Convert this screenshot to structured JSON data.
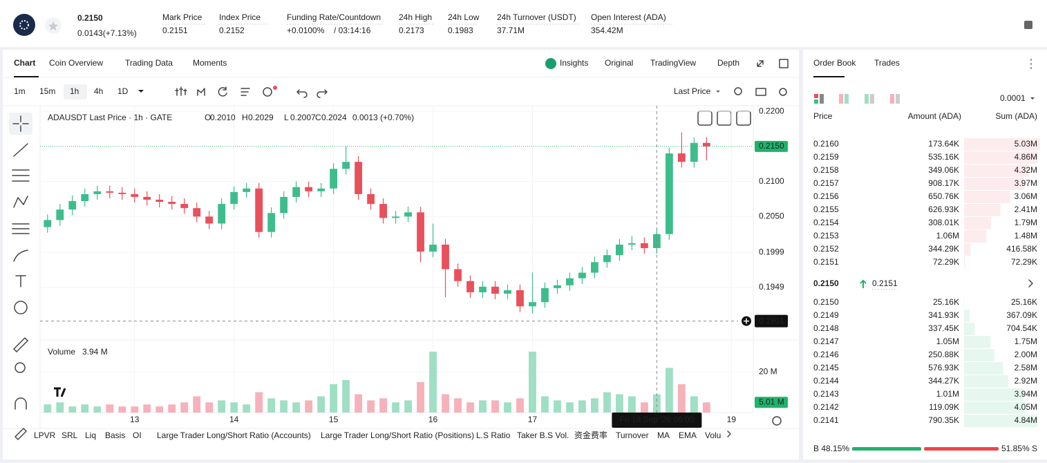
{
  "header": {
    "price": "0.2150",
    "change": "0.0143(+7.13%)",
    "stats": [
      {
        "label": "Mark Price",
        "value": "0.2151"
      },
      {
        "label": "Index Price",
        "value": "0.2152"
      },
      {
        "label": "Funding Rate/Countdown",
        "value": "+0.0100%",
        "countdown": "/ 03:14:16"
      },
      {
        "label": "24h High",
        "value": "0.2173"
      },
      {
        "label": "24h Low",
        "value": "0.1983"
      },
      {
        "label": "24h Turnover (USDT)",
        "value": "37.71M"
      },
      {
        "label": "Open Interest (ADA)",
        "value": "354.42M"
      }
    ]
  },
  "chart_tabs": [
    "Chart",
    "Coin Overview",
    "Trading Data",
    "Moments"
  ],
  "view_tabs": [
    "Insights",
    "Original",
    "TradingView",
    "Depth"
  ],
  "intervals": [
    "1m",
    "15m",
    "1h",
    "4h",
    "1D"
  ],
  "price_source": "Last Price",
  "chart_data": {
    "type": "candlestick",
    "legend": {
      "title": "ADAUSDT Last Price · 1h · GATE",
      "fields": [
        {
          "key": "O",
          "value": "0.2010"
        },
        {
          "key": "H",
          "value": "0.2029"
        },
        {
          "key": "L",
          "value": "0.2007"
        },
        {
          "key": "C",
          "value": "0.2024"
        }
      ],
      "change": "0.0013 (+0.70%)"
    },
    "x": [
      12.125,
      12.25,
      12.375,
      12.5,
      12.625,
      12.75,
      12.875,
      13,
      13.125,
      13.25,
      13.375,
      13.5,
      13.625,
      13.75,
      13.875,
      14,
      14.125,
      14.25,
      14.375,
      14.5,
      14.625,
      14.75,
      14.875,
      15,
      15.125,
      15.25,
      15.375,
      15.5,
      15.625,
      15.75,
      15.875,
      16,
      16.125,
      16.25,
      16.375,
      16.5,
      16.625,
      16.75,
      16.875,
      17,
      17.125,
      17.25,
      17.375,
      17.5,
      17.625,
      17.75,
      17.875,
      18,
      18.125,
      18.25,
      18.375,
      18.5,
      18.625,
      18.75
    ],
    "open": [
      0.2035,
      0.2045,
      0.206,
      0.2072,
      0.2082,
      0.2086,
      0.2084,
      0.2082,
      0.2078,
      0.2074,
      0.2071,
      0.2068,
      0.2062,
      0.205,
      0.204,
      0.2068,
      0.2085,
      0.209,
      0.2028,
      0.2055,
      0.2078,
      0.2092,
      0.2086,
      0.209,
      0.2118,
      0.2128,
      0.2082,
      0.2068,
      0.2048,
      0.205,
      0.2056,
      0.2,
      0.201,
      0.1975,
      0.1958,
      0.1942,
      0.195,
      0.194,
      0.1945,
      0.1922,
      0.1928,
      0.1948,
      0.1952,
      0.1962,
      0.197,
      0.1985,
      0.1995,
      0.201,
      0.2012,
      0.2005,
      0.2025,
      0.214,
      0.2128,
      0.2155
    ],
    "high": [
      0.2053,
      0.2068,
      0.208,
      0.209,
      0.2094,
      0.2094,
      0.2092,
      0.209,
      0.2086,
      0.2082,
      0.2079,
      0.2076,
      0.207,
      0.2058,
      0.2076,
      0.2093,
      0.2098,
      0.2098,
      0.2063,
      0.2086,
      0.21,
      0.21,
      0.2098,
      0.2126,
      0.215,
      0.2136,
      0.209,
      0.2076,
      0.2058,
      0.2064,
      0.2064,
      0.204,
      0.2018,
      0.1983,
      0.1966,
      0.1958,
      0.1958,
      0.1953,
      0.1953,
      0.197,
      0.1956,
      0.196,
      0.197,
      0.1978,
      0.1993,
      0.2003,
      0.2018,
      0.2022,
      0.202,
      0.2033,
      0.2148,
      0.217,
      0.2163,
      0.2163
    ],
    "low": [
      0.2027,
      0.2037,
      0.2052,
      0.2064,
      0.2074,
      0.2076,
      0.2074,
      0.207,
      0.2066,
      0.2063,
      0.206,
      0.2054,
      0.2042,
      0.2032,
      0.2032,
      0.206,
      0.2077,
      0.202,
      0.202,
      0.2047,
      0.207,
      0.2078,
      0.2078,
      0.2082,
      0.211,
      0.2074,
      0.206,
      0.204,
      0.204,
      0.2042,
      0.1985,
      0.1992,
      0.1935,
      0.195,
      0.1934,
      0.1934,
      0.1932,
      0.1932,
      0.1914,
      0.1912,
      0.192,
      0.194,
      0.1944,
      0.1954,
      0.1962,
      0.1977,
      0.1987,
      0.2002,
      0.1997,
      0.1997,
      0.2017,
      0.212,
      0.212,
      0.213
    ],
    "close": [
      0.2045,
      0.206,
      0.2072,
      0.2082,
      0.2086,
      0.2084,
      0.2082,
      0.2078,
      0.2074,
      0.2071,
      0.2068,
      0.2062,
      0.205,
      0.204,
      0.2068,
      0.2085,
      0.209,
      0.2028,
      0.2055,
      0.2078,
      0.2092,
      0.2086,
      0.209,
      0.2118,
      0.2128,
      0.2082,
      0.2068,
      0.2048,
      0.205,
      0.2056,
      0.2,
      0.201,
      0.1975,
      0.1958,
      0.1942,
      0.195,
      0.194,
      0.1945,
      0.1922,
      0.1928,
      0.1948,
      0.1952,
      0.1962,
      0.197,
      0.1985,
      0.1995,
      0.201,
      0.2012,
      0.2005,
      0.2025,
      0.214,
      0.2128,
      0.2155,
      0.215
    ],
    "volume": [
      4,
      5,
      3,
      4,
      3,
      4,
      3,
      3,
      4,
      3,
      4,
      5,
      8,
      5,
      6,
      5,
      4,
      10,
      7,
      6,
      5,
      6,
      8,
      14,
      16,
      9,
      6,
      7,
      5,
      6,
      15,
      30,
      9,
      7,
      5,
      6,
      6,
      5,
      7,
      30,
      8,
      6,
      5,
      6,
      7,
      10,
      9,
      8,
      5,
      9,
      22,
      14,
      8,
      5.01
    ],
    "up_color": "#3dbd8c",
    "down_color": "#e8505b",
    "volume_up_color": "#9fdfc4",
    "volume_down_color": "#f6b1bb",
    "xlim": [
      12.05,
      19.22
    ],
    "xticks": [
      13,
      14,
      15,
      16,
      17,
      19
    ],
    "ylim": [
      0.1874,
      0.2208
    ],
    "yticks": [
      {
        "value": 0.22,
        "label": "0.2200"
      },
      {
        "value": 0.21,
        "label": "0.2100"
      },
      {
        "value": 0.205,
        "label": "0.2050"
      },
      0.1999,
      0.1949
    ],
    "vlim": [
      0,
      33
    ],
    "vticks": [
      {
        "value": 20,
        "label": "20 M"
      }
    ],
    "volume_legend": {
      "label": "Volume",
      "value": "3.94 M"
    },
    "volume_tag": {
      "value": 5.01,
      "label": "5.01 M"
    },
    "last_price": {
      "value": 0.215,
      "label": "0.2150"
    },
    "crosshair": {
      "x": 18.25,
      "x_label": "Fri 18 Sep '26   06:00",
      "y": 0.1901
    },
    "grid": true
  },
  "indicators": [
    "LPVR",
    "SRL",
    "Liq",
    "Basis",
    "OI",
    "Large Trader Long/Short Ratio (Accounts)",
    "Large Trader Long/Short Ratio (Positions)",
    "L.S Ratio",
    "Taker B.S Vol.",
    "资金费率",
    "Turnover",
    "MA",
    "EMA",
    "Volu"
  ],
  "order_book": {
    "tabs": [
      "Order Book",
      "Trades"
    ],
    "precision": "0.0001",
    "columns": [
      "Price",
      "Amount (ADA)",
      "Sum (ADA)"
    ],
    "asks": [
      {
        "price": "0.2160",
        "amount": "173.64K",
        "sum": {
          "value": 5030000,
          "label": "5.03M"
        }
      },
      {
        "price": "0.2159",
        "amount": "535.16K",
        "sum": {
          "value": 4860000,
          "label": "4.86M"
        }
      },
      {
        "price": "0.2158",
        "amount": "349.06K",
        "sum": {
          "value": 4320000,
          "label": "4.32M"
        }
      },
      {
        "price": "0.2157",
        "amount": "908.17K",
        "sum": {
          "value": 3970000,
          "label": "3.97M"
        }
      },
      {
        "price": "0.2156",
        "amount": "650.76K",
        "sum": {
          "value": 3060000,
          "label": "3.06M"
        }
      },
      {
        "price": "0.2155",
        "amount": "626.93K",
        "sum": {
          "value": 2410000,
          "label": "2.41M"
        }
      },
      {
        "price": "0.2154",
        "amount": "308.01K",
        "sum": {
          "value": 1790000,
          "label": "1.79M"
        }
      },
      {
        "price": "0.2153",
        "amount": "1.06M",
        "sum": {
          "value": 1480000,
          "label": "1.48M"
        }
      },
      {
        "price": "0.2152",
        "amount": "344.29K",
        "sum": {
          "value": 416580,
          "label": "416.58K"
        }
      },
      {
        "price": "0.2151",
        "amount": "72.29K",
        "sum": {
          "value": 72290,
          "label": "72.29K"
        }
      }
    ],
    "mid_price": "0.2150",
    "mark_price": "0.2151",
    "bids": [
      {
        "price": "0.2150",
        "amount": "25.16K",
        "sum": {
          "value": 25160,
          "label": "25.16K"
        }
      },
      {
        "price": "0.2149",
        "amount": "341.93K",
        "sum": {
          "value": 367090,
          "label": "367.09K"
        }
      },
      {
        "price": "0.2148",
        "amount": "337.45K",
        "sum": {
          "value": 704540,
          "label": "704.54K"
        }
      },
      {
        "price": "0.2147",
        "amount": "1.05M",
        "sum": {
          "value": 1750000,
          "label": "1.75M"
        }
      },
      {
        "price": "0.2146",
        "amount": "250.88K",
        "sum": {
          "value": 2000000,
          "label": "2.00M"
        }
      },
      {
        "price": "0.2145",
        "amount": "576.93K",
        "sum": {
          "value": 2580000,
          "label": "2.58M"
        }
      },
      {
        "price": "0.2144",
        "amount": "344.27K",
        "sum": {
          "value": 2920000,
          "label": "2.92M"
        }
      },
      {
        "price": "0.2143",
        "amount": "1.01M",
        "sum": {
          "value": 3940000,
          "label": "3.94M"
        }
      },
      {
        "price": "0.2142",
        "amount": "119.09K",
        "sum": {
          "value": 4050000,
          "label": "4.05M"
        }
      },
      {
        "price": "0.2141",
        "amount": "790.35K",
        "sum": {
          "value": 4840000,
          "label": "4.84M"
        }
      }
    ],
    "buy": {
      "value": 48.15,
      "label": "B 48.15%"
    },
    "sell": {
      "value": 51.85,
      "label": "51.85% S"
    }
  }
}
